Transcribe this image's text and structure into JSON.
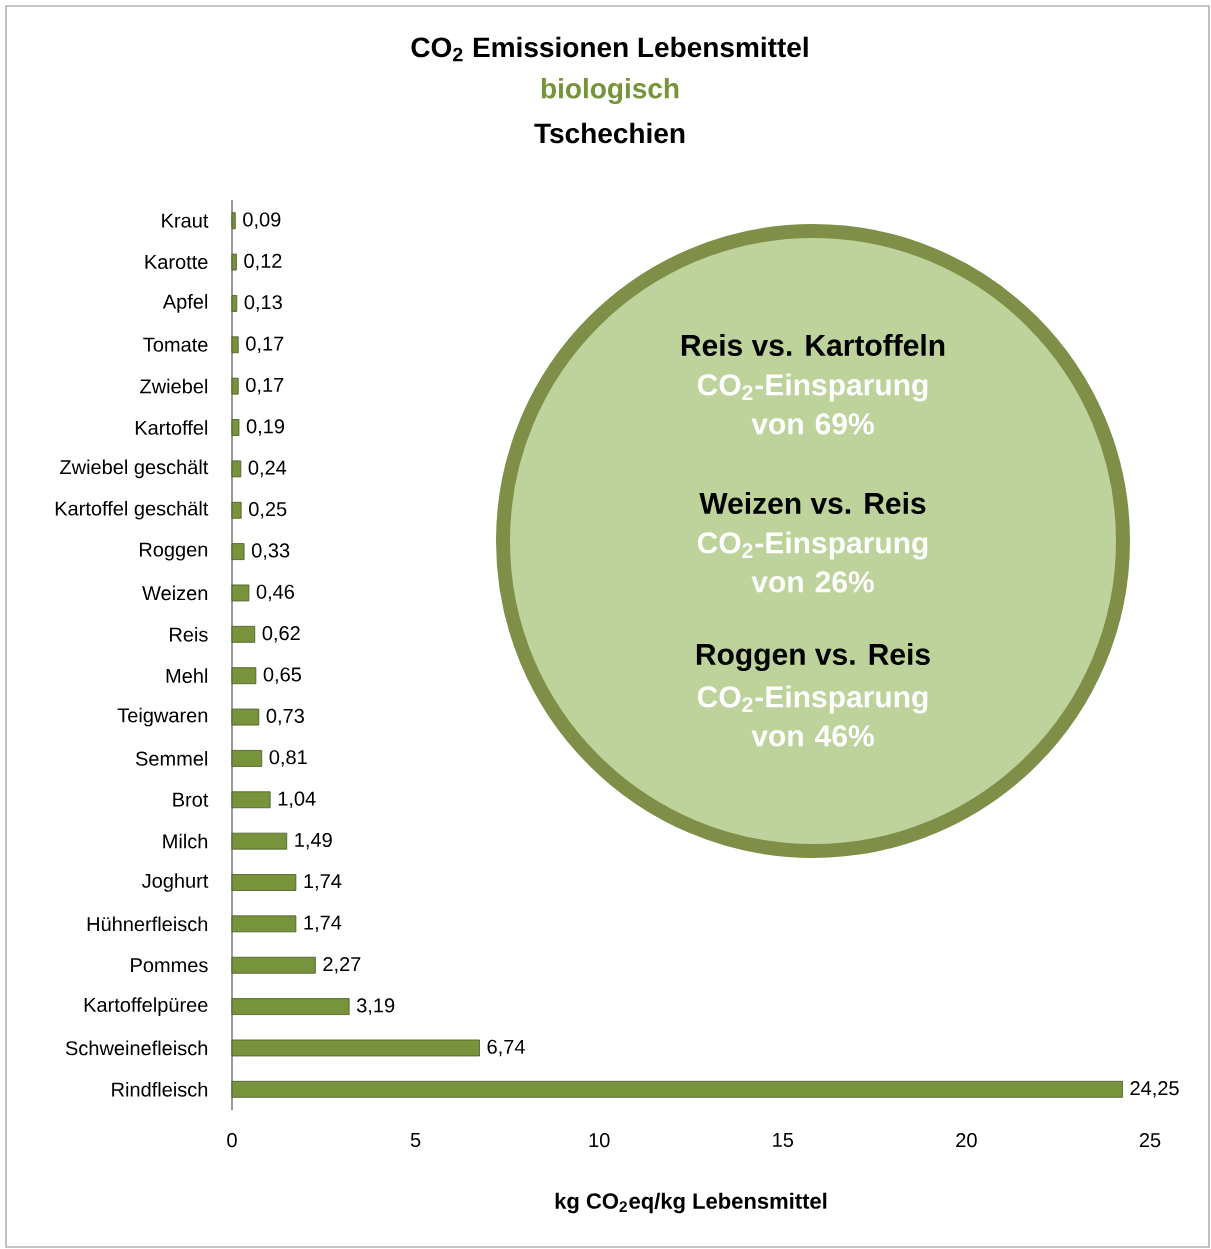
{
  "chart_data": {
    "type": "bar",
    "orientation": "horizontal",
    "title": "CO$_{2}$ Emissionen Lebensmittel",
    "subtitle": "biologisch",
    "xlabel": "kg CO$_{2}$eq/kg Lebensmittel",
    "annotations": [
      "Tschechien",
      "Reis vs. Kartoffeln",
      "CO$_{2}$-Einsparung von 69%",
      "Weizen vs. Reis",
      "CO$_{2}$-Einsparung von 26%",
      "Roggen vs. Reis",
      "CO$_{2}$-Einsparung von 46%"
    ],
    "categories": [
      "Kraut",
      "Karotte",
      "Apfel",
      "Tomate",
      "Zwiebel",
      "Kartoffel",
      "Zwiebel geschält",
      "Kartoffel geschält",
      "Roggen",
      "Weizen",
      "Reis",
      "Mehl",
      "Teigwaren",
      "Semmel",
      "Brot",
      "Milch",
      "Joghurt",
      "Hühnerfleisch",
      "Pommes",
      "Kartoffelpüree",
      "Schweinefleisch",
      "Rindfleisch"
    ],
    "values": [
      0.09,
      0.12,
      0.13,
      0.17,
      0.17,
      0.19,
      0.24,
      0.25,
      0.33,
      0.46,
      0.62,
      0.65,
      0.73,
      0.81,
      1.04,
      1.49,
      1.74,
      1.74,
      2.27,
      3.19,
      6.74,
      24.25
    ],
    "value_labels": [
      "0,09",
      "0,12",
      "0,13",
      "0,17",
      "0,17",
      "0,19",
      "0,24",
      "0,25",
      "0,33",
      "0,46",
      "0,62",
      "0,65",
      "0,73",
      "0,81",
      "1,04",
      "1,49",
      "1,74",
      "1,74",
      "2,27",
      "3,19",
      "6,74",
      "24,25"
    ],
    "color": "#77933c",
    "xlim": [
      0,
      25
    ],
    "xticks": [
      0,
      5,
      10,
      15,
      20,
      25
    ]
  }
}
